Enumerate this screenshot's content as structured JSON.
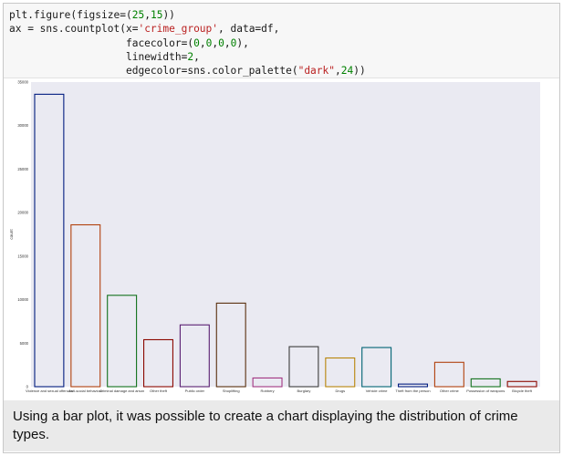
{
  "code": {
    "lines": [
      "plt.figure(figsize=(25,15))",
      "ax = sns.countplot(x='crime_group', data=df,",
      "                   facecolor=(0,0,0,0),",
      "                   linewidth=2,",
      "                   edgecolor=sns.color_palette(\"dark\",24))"
    ]
  },
  "caption": "Using a bar plot, it was possible to create a chart displaying the distribution of crime types.",
  "chart_data": {
    "type": "bar",
    "style": "outline-only bars on grey background (seaborn darkgrid)",
    "xlabel": "",
    "ylabel": "count",
    "ylim": [
      0,
      35000
    ],
    "yticks": [
      "0",
      "5000",
      "10000",
      "15000",
      "20000",
      "25000",
      "30000",
      "35000"
    ],
    "grid": false,
    "background_color": "#eaeaf2",
    "categories": [
      "Violence and sexual offences",
      "Anti-social behaviour",
      "Criminal damage and arson",
      "Other theft",
      "Public order",
      "Shoplifting",
      "Robbery",
      "Burglary",
      "Drugs",
      "Vehicle crime",
      "Theft from the person",
      "Other crime",
      "Possession of weapons",
      "Bicycle theft"
    ],
    "values": [
      33600,
      18600,
      10500,
      5400,
      7100,
      9600,
      1000,
      4600,
      3300,
      4500,
      300,
      2800,
      900,
      600
    ],
    "edge_colors": [
      "#001c7f",
      "#b1400d",
      "#12711c",
      "#8c0800",
      "#591e71",
      "#592f0d",
      "#a23582",
      "#3c3c3c",
      "#b8850a",
      "#006374",
      "#001c7f",
      "#b1400d",
      "#12711c",
      "#8c0800"
    ]
  }
}
